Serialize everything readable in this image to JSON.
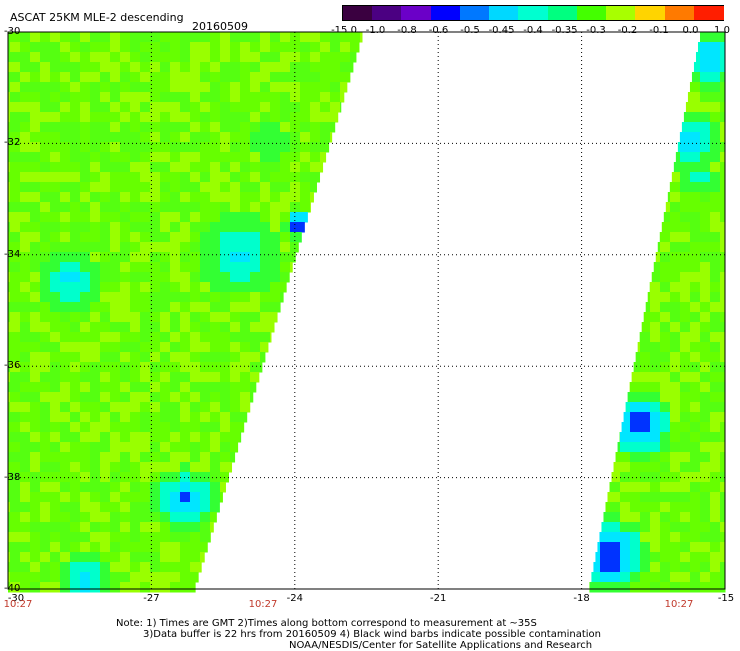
{
  "header": {
    "title": "ASCAT 25KM MLE-2 descending",
    "date": "20160509"
  },
  "colorbar": {
    "labels": [
      "-15.0",
      "-1.0",
      "-0.8",
      "-0.6",
      "-0.5",
      "-0.45",
      "-0.4",
      "-0.35",
      "-0.3",
      "-0.2",
      "-0.1",
      "0.0",
      "1.0"
    ],
    "colors": [
      "#3a0040",
      "#4b0082",
      "#6b00c8",
      "#0000ff",
      "#0078ff",
      "#00d8ff",
      "#00ffd0",
      "#00ff80",
      "#44ff00",
      "#a8ff00",
      "#ffd400",
      "#ff7a00",
      "#ff1e00"
    ]
  },
  "axes": {
    "lat_labels": [
      "-30",
      "-32",
      "-34",
      "-36",
      "-38",
      "-40"
    ],
    "lon_labels": [
      "-30",
      "-27",
      "-24",
      "-21",
      "-18",
      "-15"
    ],
    "time_labels": [
      "10:27",
      "10:27",
      "10:27"
    ]
  },
  "notes": {
    "line1": "Note: 1) Times are GMT 2)Times along bottom correspond to measurement at ~35S",
    "line2": "3)Data buffer is 22 hrs from 20160509 4) Black wind barbs indicate possible contamination",
    "line3": "NOAA/NESDIS/Center for Satellite Applications and Research"
  },
  "map": {
    "lat_range": [
      -40,
      -30
    ],
    "lon_range": [
      -30,
      -15
    ],
    "grid": true,
    "swath_colors": {
      "base": "#66ff00",
      "light": "#99ff00",
      "mid": "#33ff33",
      "cyan": "#00ffcc",
      "aqua": "#00e6ff",
      "blue": "#0033ff",
      "dark": "#0000dd"
    }
  }
}
